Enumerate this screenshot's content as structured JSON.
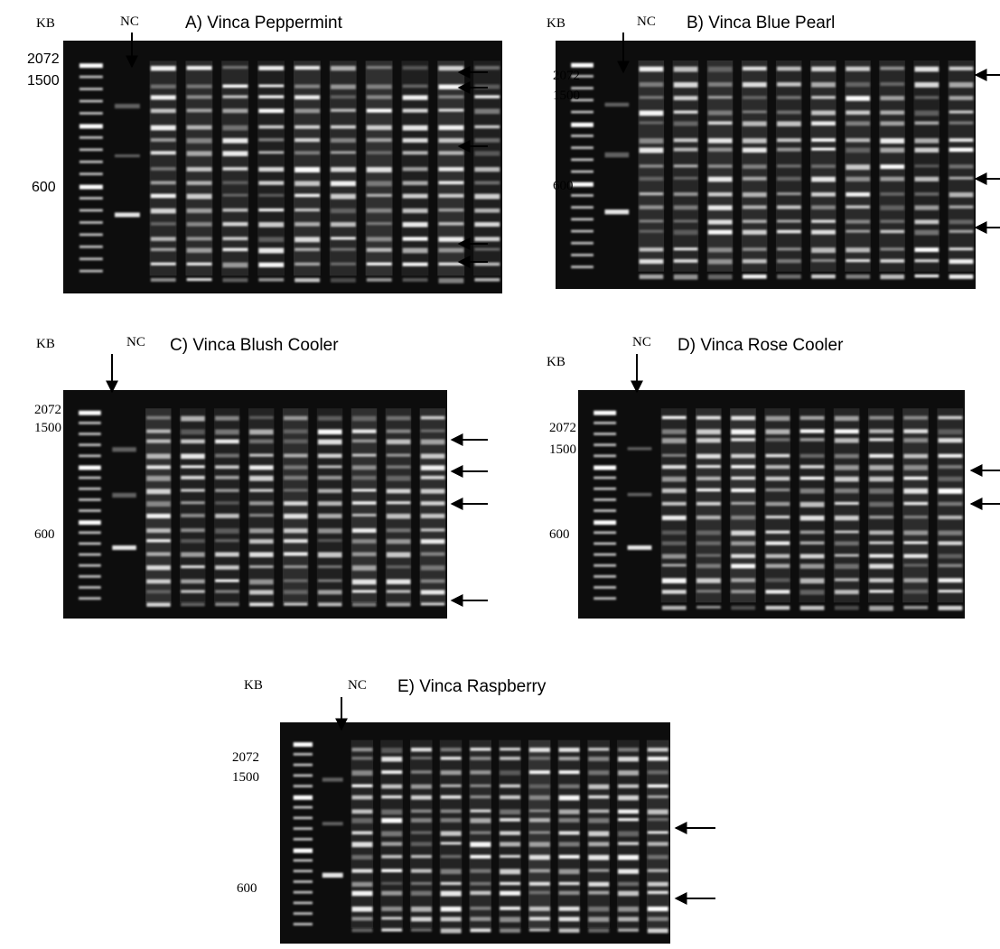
{
  "panels": [
    {
      "title": "A) Vinca Peppermint",
      "kb": "KB",
      "nc": "NC",
      "markers": [
        "2072",
        "1500",
        "600"
      ]
    },
    {
      "title": "B) Vinca Blue Pearl",
      "kb": "KB",
      "nc": "NC",
      "markers": [
        "2072",
        "1500",
        "600"
      ]
    },
    {
      "title": "C) Vinca Blush Cooler",
      "kb": "KB",
      "nc": "NC",
      "markers": [
        "2072",
        "1500",
        "600"
      ]
    },
    {
      "title": "D) Vinca Rose Cooler",
      "kb": "KB",
      "nc": "NC",
      "markers": [
        "2072",
        "1500",
        "600"
      ]
    },
    {
      "title": "E) Vinca Raspberry",
      "kb": "KB",
      "nc": "NC",
      "markers": [
        "2072",
        "1500",
        "600"
      ]
    }
  ]
}
